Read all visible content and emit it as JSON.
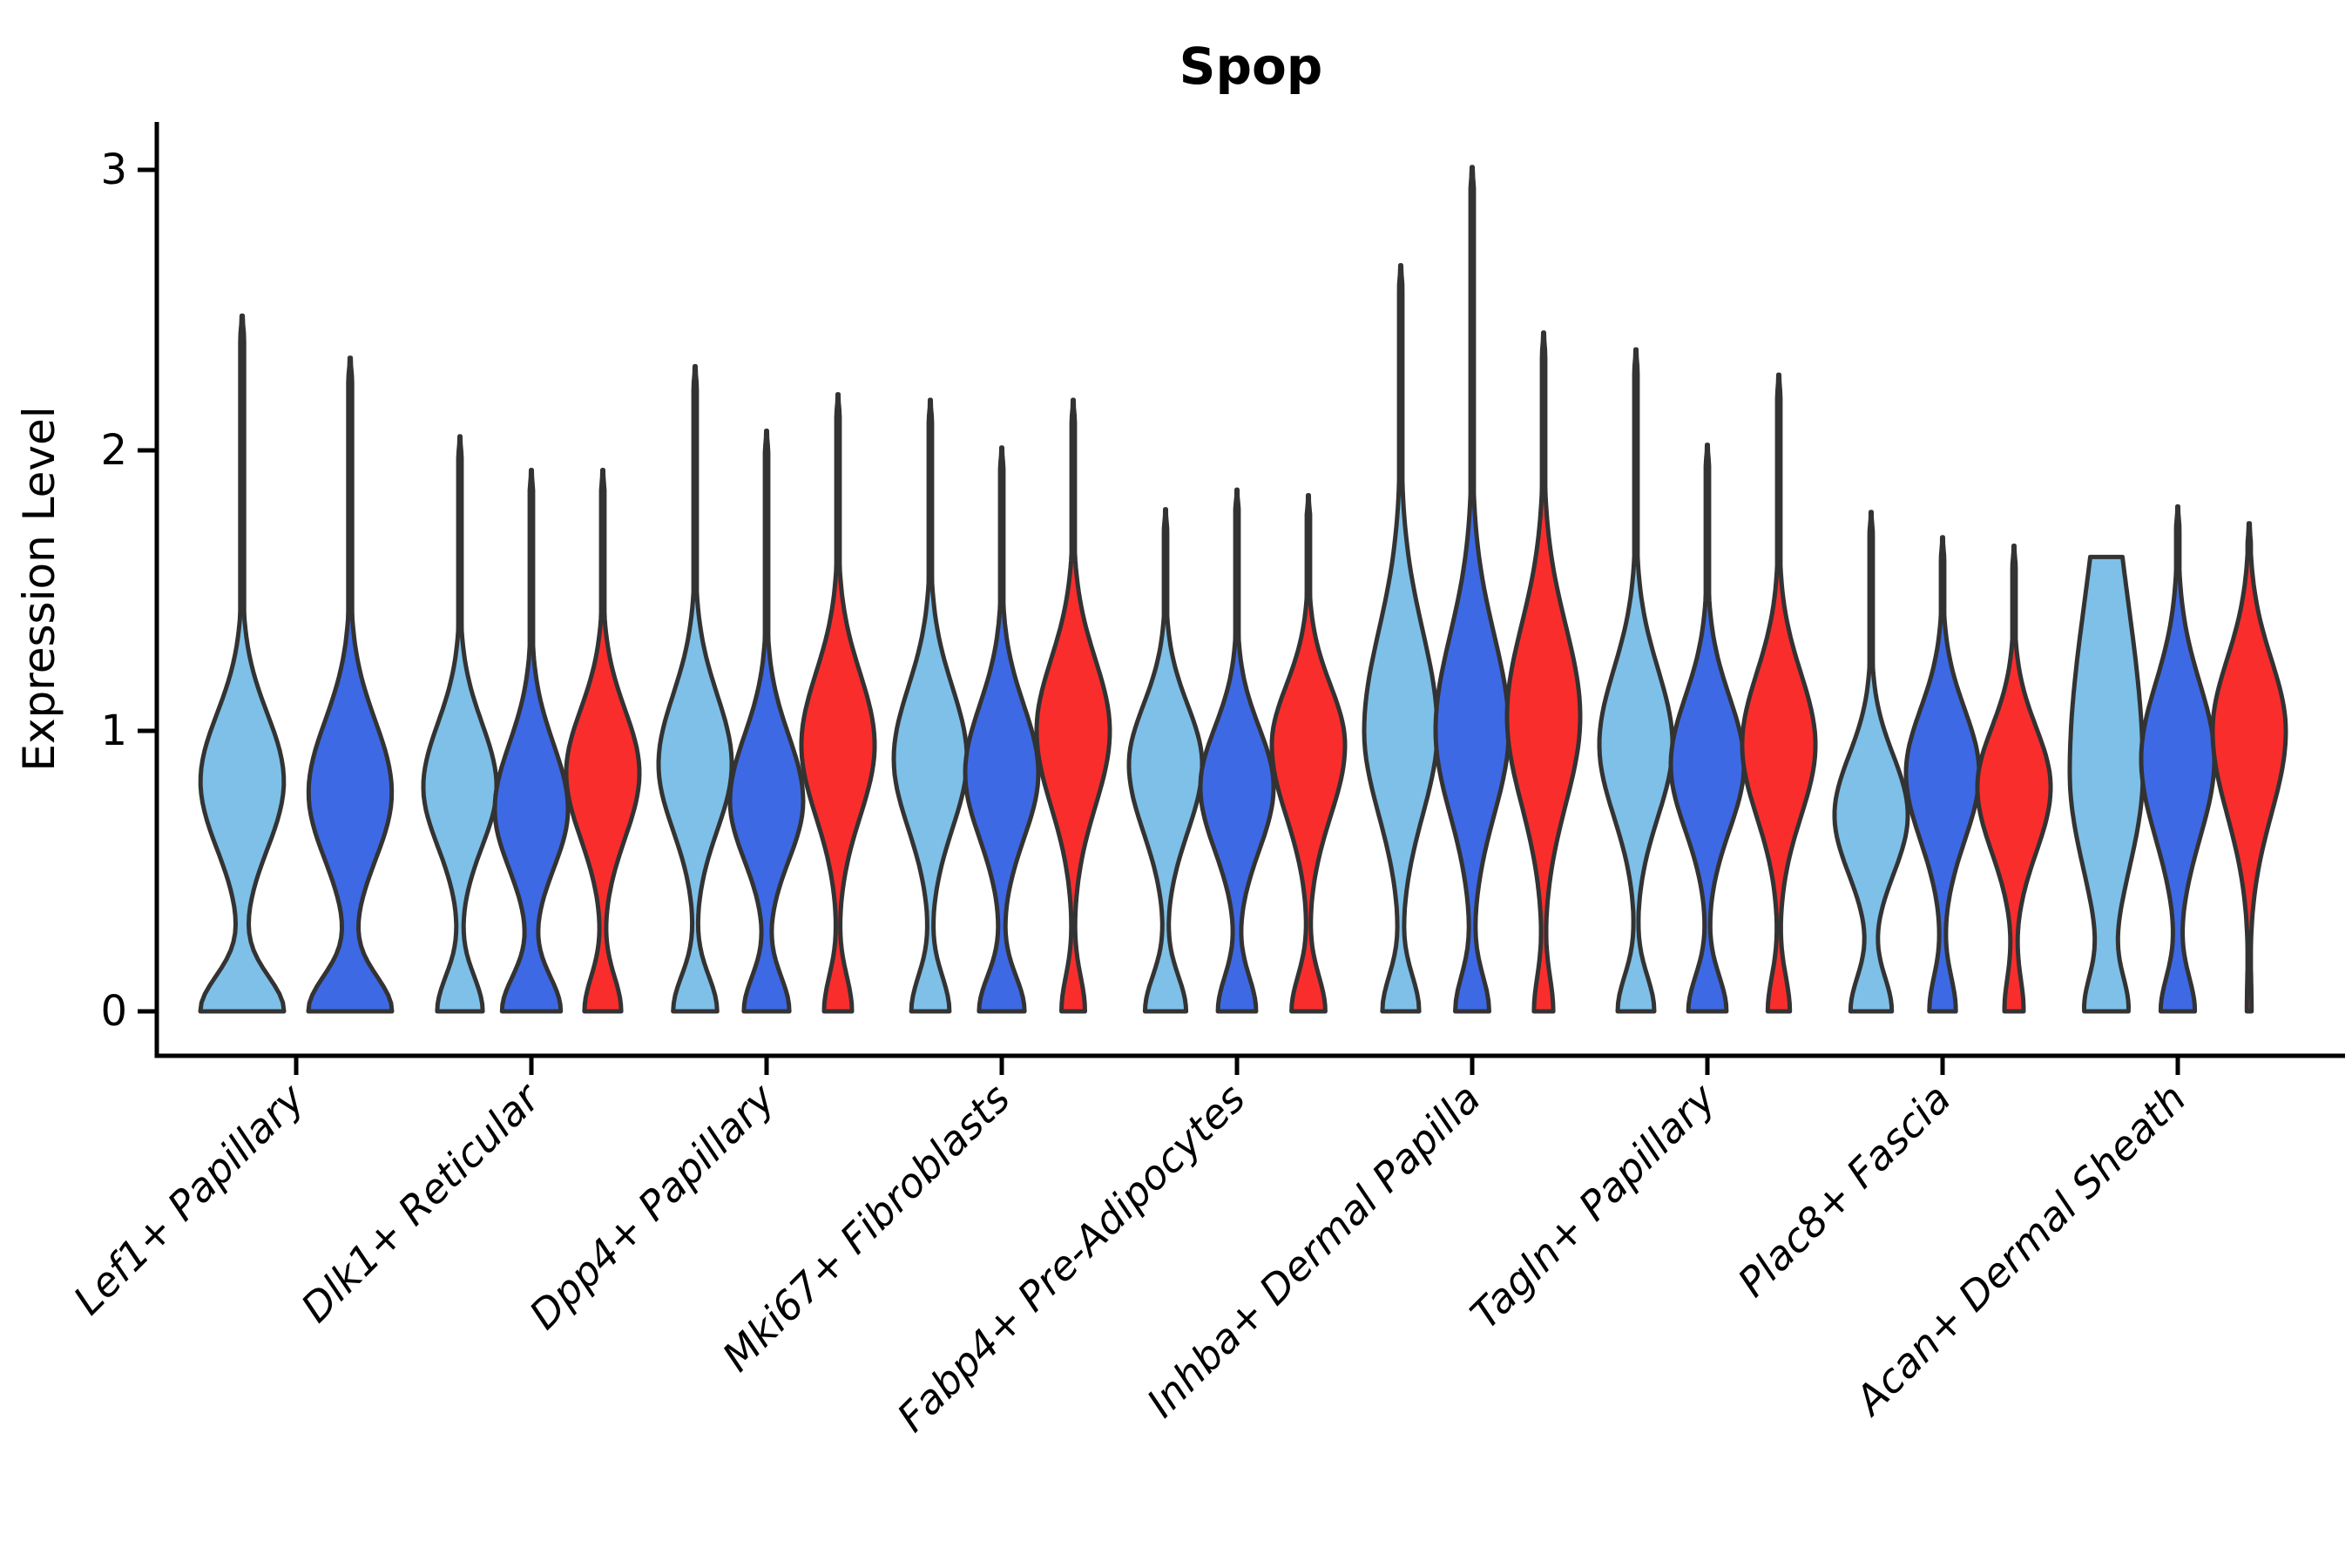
{
  "title": "Spop",
  "axes": {
    "ylabel": "Expression Level",
    "ytick_labels": [
      "0",
      "1",
      "2",
      "3"
    ],
    "ylim": [
      0,
      3.15
    ],
    "xlabel": ""
  },
  "colors": {
    "series": [
      "#7EC0E8",
      "#3E69E4",
      "#FA2D2D"
    ],
    "violin_outline": "#333333",
    "axis": "#000000",
    "background": "#FFFFFF",
    "text": "#000000"
  },
  "chart_data": {
    "type": "violin",
    "title": "Spop",
    "ylabel": "Expression Level",
    "yticks": [
      0,
      1,
      2,
      3
    ],
    "ylim": [
      0,
      3.15
    ],
    "grid": false,
    "legend": "none",
    "series_colors": [
      "#7EC0E8",
      "#3E69E4",
      "#FA2D2D"
    ],
    "categories": [
      "Lef1+ Papillary",
      "Dlk1+ Reticular",
      "Dpp4+ Papillary",
      "Mki67+ Fibroblasts",
      "Fabp4+ Pre-Adipocytes",
      "Inhba+ Dermal Papilla",
      "Tagln+ Papillary",
      "Plac8+ Fascia",
      "Acan+ Dermal Sheath"
    ],
    "groups": [
      {
        "category": "Lef1+ Papillary",
        "violins": [
          {
            "series": 0,
            "max": 2.48,
            "mode": 0.82,
            "spread_up": 0.34,
            "spread_down": 0.34,
            "base": 1.0,
            "flat_top": false
          },
          {
            "series": 1,
            "max": 2.33,
            "mode": 0.78,
            "spread_up": 0.36,
            "spread_down": 0.34,
            "base": 1.0,
            "flat_top": false
          }
        ]
      },
      {
        "category": "Dlk1+ Reticular",
        "violins": [
          {
            "series": 0,
            "max": 2.05,
            "mode": 0.8,
            "spread_up": 0.32,
            "spread_down": 0.3,
            "base": 0.62,
            "flat_top": false
          },
          {
            "series": 1,
            "max": 1.93,
            "mode": 0.72,
            "spread_up": 0.33,
            "spread_down": 0.3,
            "base": 0.8,
            "flat_top": false
          },
          {
            "series": 2,
            "max": 1.93,
            "mode": 0.85,
            "spread_up": 0.32,
            "spread_down": 0.33,
            "base": 0.5,
            "flat_top": false
          }
        ]
      },
      {
        "category": "Dpp4+ Papillary",
        "violins": [
          {
            "series": 0,
            "max": 2.3,
            "mode": 0.88,
            "spread_up": 0.35,
            "spread_down": 0.33,
            "base": 0.6,
            "flat_top": false
          },
          {
            "series": 1,
            "max": 2.07,
            "mode": 0.75,
            "spread_up": 0.33,
            "spread_down": 0.3,
            "base": 0.62,
            "flat_top": false
          },
          {
            "series": 2,
            "max": 2.2,
            "mode": 0.95,
            "spread_up": 0.36,
            "spread_down": 0.36,
            "base": 0.38,
            "flat_top": false
          }
        ]
      },
      {
        "category": "Mki67+ Fibroblasts",
        "violins": [
          {
            "series": 0,
            "max": 2.18,
            "mode": 0.9,
            "spread_up": 0.36,
            "spread_down": 0.35,
            "base": 0.52,
            "flat_top": false
          },
          {
            "series": 1,
            "max": 2.01,
            "mode": 0.85,
            "spread_up": 0.34,
            "spread_down": 0.33,
            "base": 0.62,
            "flat_top": false
          },
          {
            "series": 2,
            "max": 2.18,
            "mode": 1.0,
            "spread_up": 0.36,
            "spread_down": 0.38,
            "base": 0.32,
            "flat_top": false
          }
        ]
      },
      {
        "category": "Fabp4+ Pre-Adipocytes",
        "violins": [
          {
            "series": 0,
            "max": 1.79,
            "mode": 0.88,
            "spread_up": 0.3,
            "spread_down": 0.34,
            "base": 0.56,
            "flat_top": false
          },
          {
            "series": 1,
            "max": 1.86,
            "mode": 0.8,
            "spread_up": 0.3,
            "spread_down": 0.32,
            "base": 0.52,
            "flat_top": false
          },
          {
            "series": 2,
            "max": 1.84,
            "mode": 0.95,
            "spread_up": 0.3,
            "spread_down": 0.36,
            "base": 0.46,
            "flat_top": false
          }
        ]
      },
      {
        "category": "Inhba+ Dermal Papilla",
        "violins": [
          {
            "series": 0,
            "max": 2.66,
            "mode": 1.0,
            "spread_up": 0.5,
            "spread_down": 0.42,
            "base": 0.5,
            "flat_top": false
          },
          {
            "series": 1,
            "max": 3.01,
            "mode": 1.0,
            "spread_up": 0.48,
            "spread_down": 0.42,
            "base": 0.46,
            "flat_top": false
          },
          {
            "series": 2,
            "max": 2.42,
            "mode": 1.05,
            "spread_up": 0.46,
            "spread_down": 0.44,
            "base": 0.26,
            "flat_top": false
          }
        ]
      },
      {
        "category": "Tagln+ Papillary",
        "violins": [
          {
            "series": 0,
            "max": 2.36,
            "mode": 0.95,
            "spread_up": 0.38,
            "spread_down": 0.36,
            "base": 0.5,
            "flat_top": false
          },
          {
            "series": 1,
            "max": 2.02,
            "mode": 0.88,
            "spread_up": 0.34,
            "spread_down": 0.33,
            "base": 0.52,
            "flat_top": false
          },
          {
            "series": 2,
            "max": 2.27,
            "mode": 0.95,
            "spread_up": 0.36,
            "spread_down": 0.36,
            "base": 0.3,
            "flat_top": false
          }
        ]
      },
      {
        "category": "Plac8+ Fascia",
        "violins": [
          {
            "series": 0,
            "max": 1.78,
            "mode": 0.7,
            "spread_up": 0.3,
            "spread_down": 0.3,
            "base": 0.56,
            "flat_top": false
          },
          {
            "series": 1,
            "max": 1.69,
            "mode": 0.85,
            "spread_up": 0.32,
            "spread_down": 0.34,
            "base": 0.36,
            "flat_top": false
          },
          {
            "series": 2,
            "max": 1.66,
            "mode": 0.8,
            "spread_up": 0.3,
            "spread_down": 0.33,
            "base": 0.26,
            "flat_top": false
          }
        ]
      },
      {
        "category": "Acan+ Dermal Sheath",
        "violins": [
          {
            "series": 0,
            "max": 1.62,
            "mode": 0.85,
            "spread_up": 0.85,
            "spread_down": 0.5,
            "base": 0.55,
            "flat_top": true
          },
          {
            "series": 1,
            "max": 1.8,
            "mode": 0.9,
            "spread_up": 0.38,
            "spread_down": 0.4,
            "base": 0.46,
            "flat_top": false
          },
          {
            "series": 2,
            "max": 1.74,
            "mode": 1.0,
            "spread_up": 0.36,
            "spread_down": 0.42,
            "base": 0.06,
            "flat_top": false
          }
        ]
      }
    ]
  }
}
